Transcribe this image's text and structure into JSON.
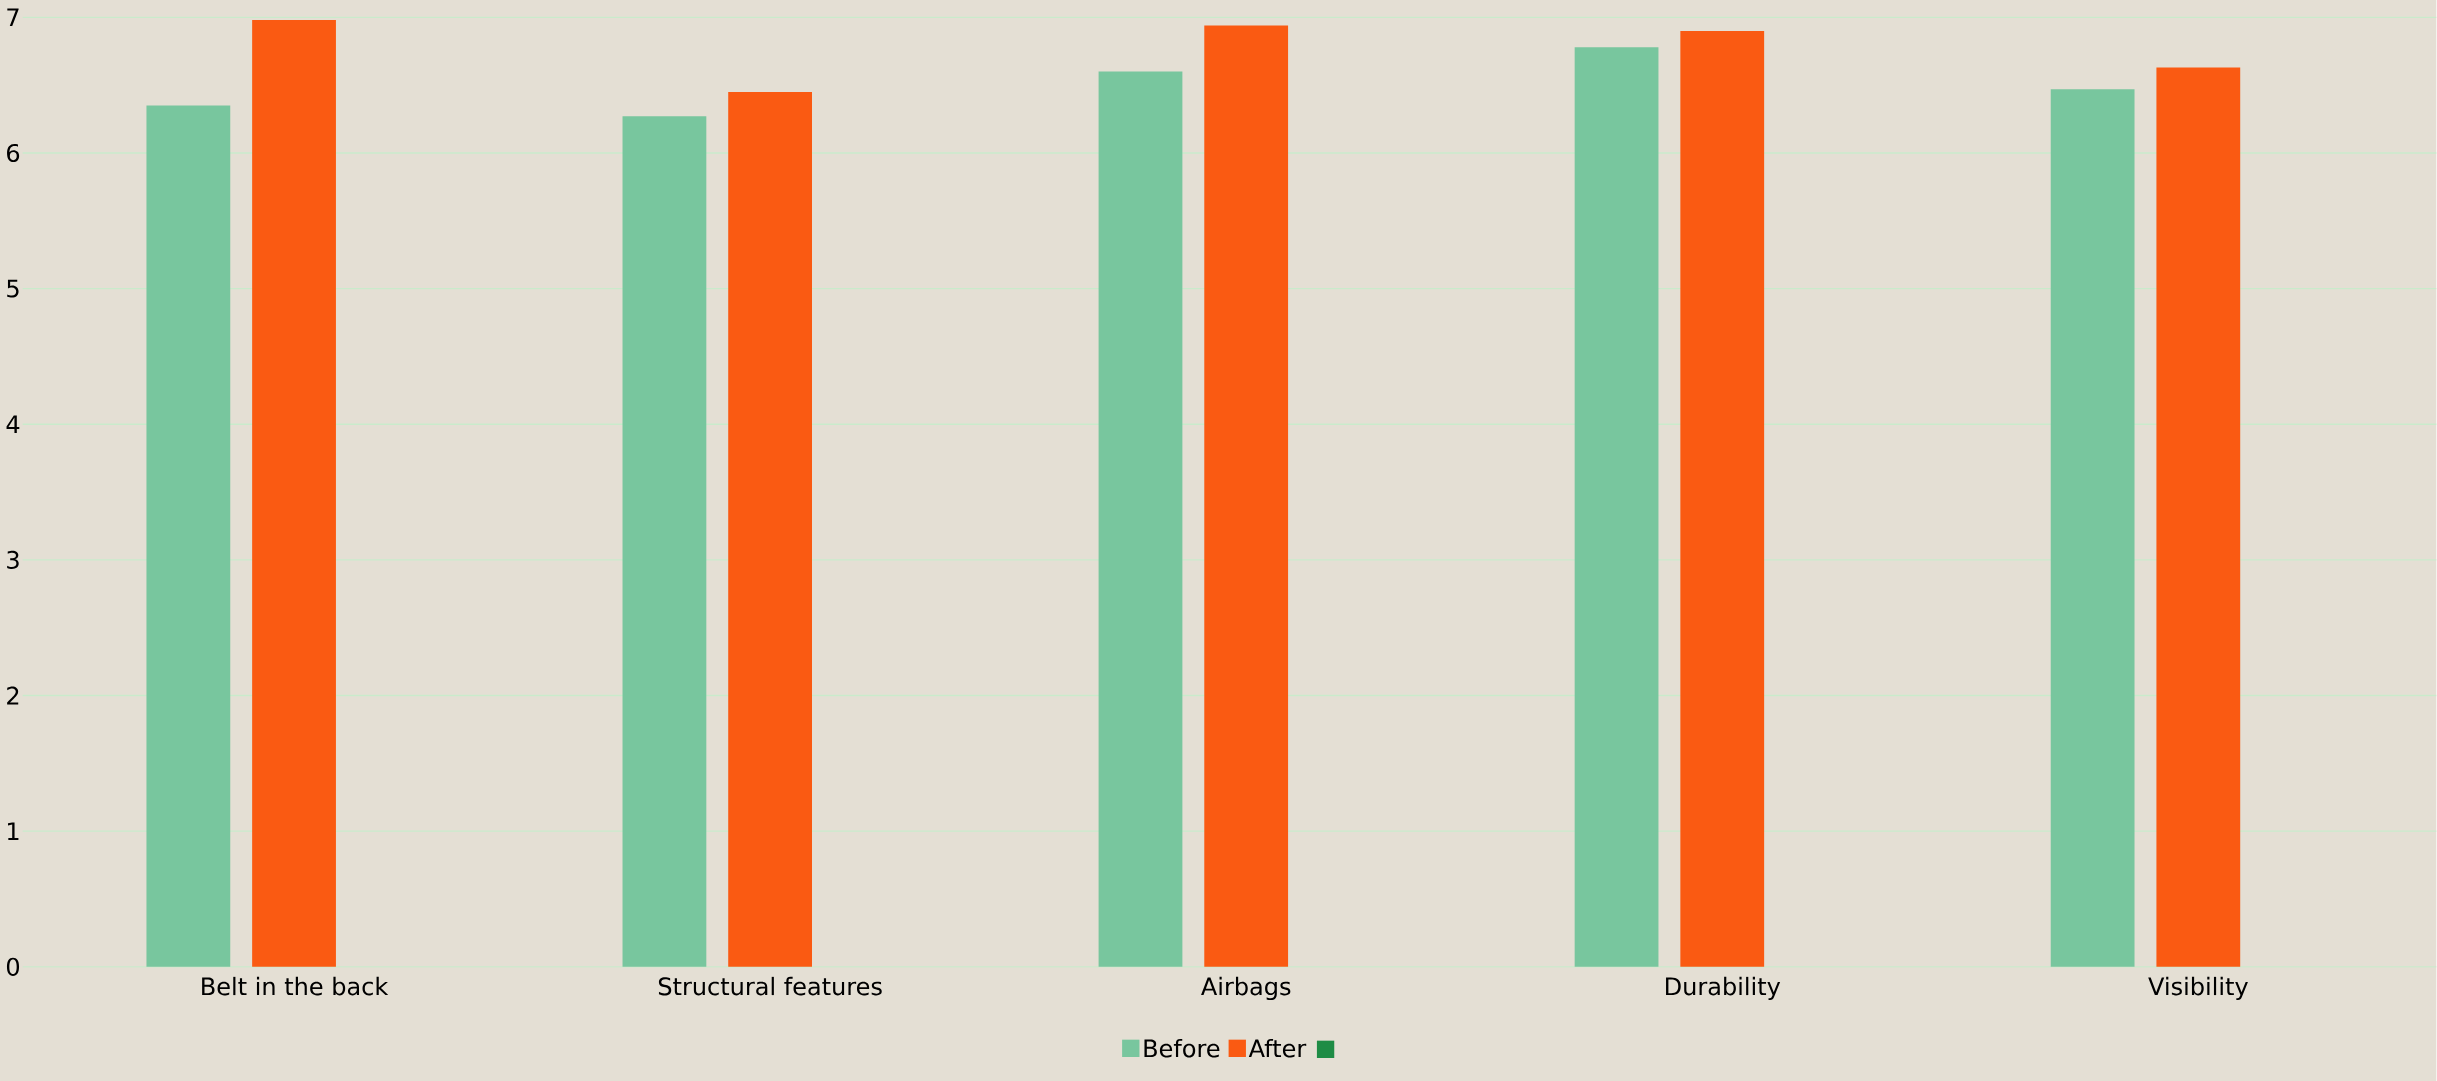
{
  "chart_data": {
    "type": "bar",
    "categories": [
      "Belt in the back",
      "Structural features",
      "Airbags",
      "Durability",
      "Visibility"
    ],
    "series": [
      {
        "name": "Before",
        "color": "#78c69e",
        "values": [
          6.35,
          6.27,
          6.6,
          6.78,
          6.47
        ]
      },
      {
        "name": "After",
        "color": "#fa5a12",
        "values": [
          6.98,
          6.45,
          6.94,
          6.9,
          6.63
        ]
      },
      {
        "color": "#1e8c45",
        "values": [
          null,
          null,
          null,
          null,
          null
        ]
      }
    ],
    "ylim": [
      0,
      7
    ],
    "yticks": [
      0,
      1,
      2,
      3,
      4,
      5,
      6,
      7
    ],
    "grid": "y",
    "legend": "bottom"
  }
}
